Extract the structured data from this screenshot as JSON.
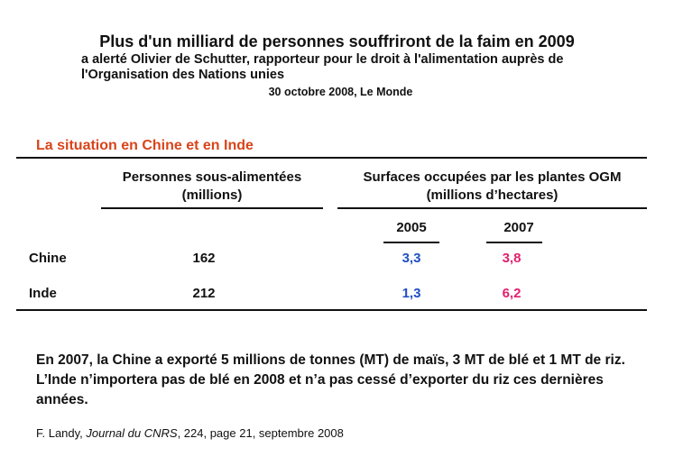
{
  "header": {
    "title": "Plus d'un milliard de personnes souffriront de la faim en 2009",
    "subtitle_line1": "a alerté Olivier de Schutter, rapporteur pour le droit à l'alimentation auprès de",
    "subtitle_line2": "l'Organisation des Nations unies",
    "date_source": "30 octobre 2008, Le Monde"
  },
  "section_title": "La situation en Chine et en Inde",
  "table": {
    "col1_header_line1": "Personnes sous-alimentées",
    "col1_header_line2": "(millions)",
    "col2_header_line1": "Surfaces occupées par les plantes OGM",
    "col2_header_line2": "(millions d’hectares)",
    "year_a": "2005",
    "year_b": "2007",
    "rows": [
      {
        "country": "Chine",
        "undernourished": "162",
        "ogm_2005": "3,3",
        "ogm_2007": "3,8"
      },
      {
        "country": "Inde",
        "undernourished": "212",
        "ogm_2005": "1,3",
        "ogm_2007": "6,2"
      }
    ],
    "colors": {
      "year_2005": "#1f4fc4",
      "year_2007": "#e2206f",
      "section": "#d9441a"
    }
  },
  "footer": {
    "paragraph1": "En 2007, la Chine a exporté 5 millions de tonnes (MT) de maïs, 3 MT de blé et 1 MT de riz.",
    "paragraph2": "L’Inde n’importera pas de blé en 2008 et n’a pas cessé d’exporter du riz ces dernières années.",
    "citation_author": "F. Landy, ",
    "citation_journal": "Journal du CNRS",
    "citation_rest": ", 224, page 21, septembre 2008"
  }
}
